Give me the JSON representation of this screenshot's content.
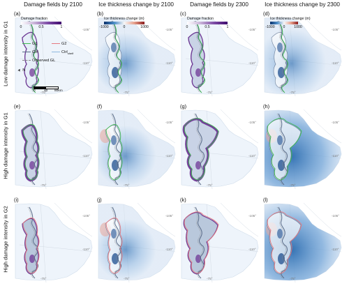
{
  "columns": [
    "Damage fields by 2100",
    "Ice thickness change by 2100",
    "Damage fields by 2300",
    "Ice thickness change by 2300"
  ],
  "rows": [
    "Low damage intensity in G1",
    "High damage intensity in G1",
    "High damage intensity in G2"
  ],
  "panel_labels": [
    "(a)",
    "(b)",
    "(c)",
    "(d)",
    "(e)",
    "(f)",
    "(g)",
    "(h)",
    "(i)",
    "(j)",
    "(k)",
    "(l)"
  ],
  "colorbar_damage": {
    "title": "Damage fraction",
    "ticks": [
      "0",
      "0.5",
      "1"
    ]
  },
  "colorbar_thickness": {
    "title": "Ice thickness change (m)",
    "ticks": [
      "-1000",
      "0",
      "1000"
    ]
  },
  "colorbar_thickness_d": {
    "title": "Ice thickness change (m)",
    "ticks": [
      "-1000",
      "0",
      "1000"
    ]
  },
  "legend": {
    "g1": "G1",
    "g2": "G2",
    "ctrl": "Ctrl",
    "ctrl_shelf_main": "Ctrl",
    "ctrl_shelf_sub": "shelf",
    "observed_gl": "Observed GL",
    "north": "N"
  },
  "scalebar": {
    "zero": "0",
    "mid": "40",
    "end": "80km"
  },
  "lat_labels": {
    "a": "-105°",
    "b": "-110°",
    "c": "-75°"
  },
  "colors": {
    "g1": "#3fb950",
    "g2": "#e5787f",
    "ctrl": "#5a6b87",
    "ctrl_shelf": "#8fb8e0",
    "observed_gl": "#888888",
    "damage": "#6a2c91",
    "thinning": "#2b6cb0"
  }
}
